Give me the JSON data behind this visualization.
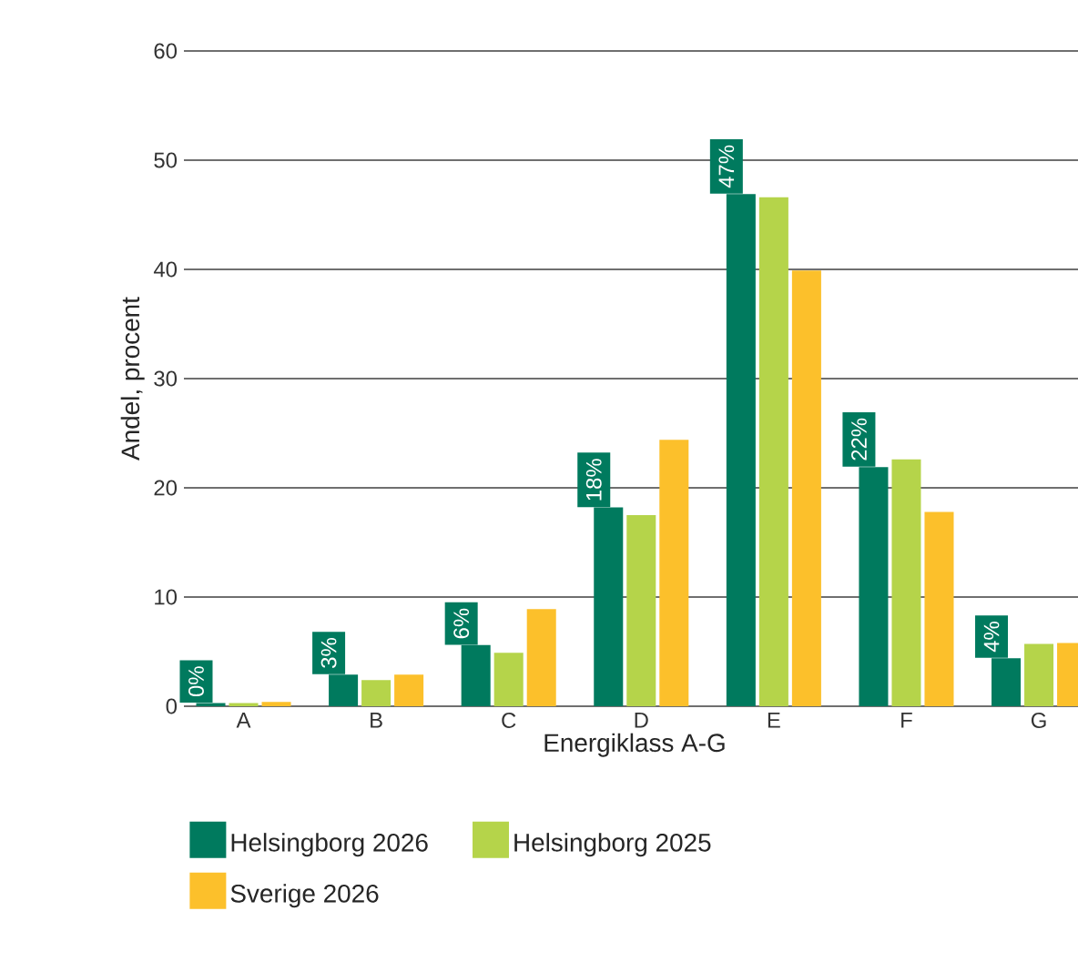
{
  "chart_data": {
    "type": "bar",
    "xlabel": "Energiklass A-G",
    "ylabel": "Andel, procent",
    "categories": [
      "A",
      "B",
      "C",
      "D",
      "E",
      "F",
      "G"
    ],
    "series": [
      {
        "name": "Helsingborg 2026",
        "color": "#007a5e",
        "values": [
          0.3,
          2.9,
          5.6,
          18.2,
          46.9,
          21.9,
          4.4
        ],
        "value_labels": [
          "0%",
          "3%",
          "6%",
          "18%",
          "47%",
          "22%",
          "4%"
        ]
      },
      {
        "name": "Helsingborg 2025",
        "color": "#b5d44a",
        "values": [
          0.3,
          2.4,
          4.9,
          17.5,
          46.6,
          22.6,
          5.7
        ]
      },
      {
        "name": "Sverige 2026",
        "color": "#fcc02b",
        "values": [
          0.4,
          2.9,
          8.9,
          24.4,
          39.9,
          17.8,
          5.8
        ]
      }
    ],
    "ylim": [
      0,
      60
    ],
    "yticks": [
      0,
      10,
      20,
      30,
      40,
      50,
      60
    ],
    "grid": "y",
    "legend": "bottom"
  }
}
